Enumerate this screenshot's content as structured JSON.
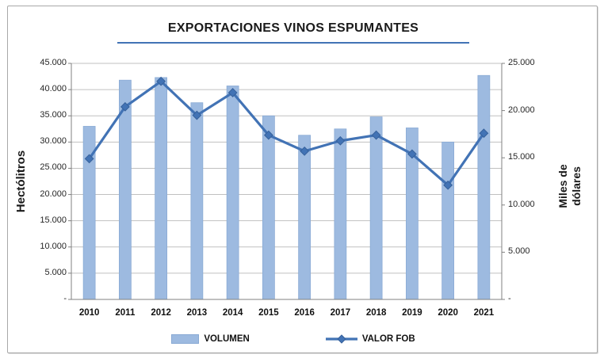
{
  "title": {
    "text": "EXPORTACIONES VINOS ESPUMANTES"
  },
  "axes": {
    "left": {
      "title": "Hectólitros",
      "ticks": [
        "45.000",
        "40.000",
        "35.000",
        "30.000",
        "25.000",
        "20.000",
        "15.000",
        "10.000",
        "5.000",
        "-"
      ]
    },
    "right": {
      "title_line1": "Miles de",
      "title_line2": "dólares",
      "ticks": [
        "25.000",
        "20.000",
        "15.000",
        "10.000",
        "5.000",
        "-"
      ]
    }
  },
  "legend": {
    "items": [
      {
        "label": "VOLUMEN",
        "type": "bar"
      },
      {
        "label": "VALOR FOB",
        "type": "line"
      }
    ]
  },
  "colors": {
    "bar": "#9DBAE0",
    "bar_edge": "#88A9D4",
    "line": "#4273B5",
    "line_dark": "#36619B",
    "grid": "#C0C0C0",
    "axis": "#808080",
    "underline": "#4273B5"
  },
  "chart_data": {
    "type": "bar+line",
    "title": "EXPORTACIONES VINOS ESPUMANTES",
    "categories": [
      "2010",
      "2011",
      "2012",
      "2013",
      "2014",
      "2015",
      "2016",
      "2017",
      "2018",
      "2019",
      "2020",
      "2021"
    ],
    "series": [
      {
        "name": "VOLUMEN",
        "type": "bar",
        "axis": "left",
        "unit": "hectólitros",
        "values": [
          33000,
          41800,
          42300,
          37500,
          40700,
          35000,
          31300,
          32500,
          34800,
          32700,
          30000,
          42700
        ]
      },
      {
        "name": "VALOR FOB",
        "type": "line",
        "axis": "right",
        "unit": "miles de dólares",
        "values": [
          14900,
          20400,
          23100,
          19500,
          21900,
          17400,
          15700,
          16800,
          17400,
          15400,
          12100,
          17600
        ]
      }
    ],
    "left_ylabel": "Hectólitros",
    "right_ylabel": "Miles de dólares",
    "left_ylim": [
      0,
      45000
    ],
    "left_step": 5000,
    "right_ylim": [
      0,
      25000
    ],
    "right_step": 5000,
    "grid": true,
    "legend_position": "bottom"
  }
}
